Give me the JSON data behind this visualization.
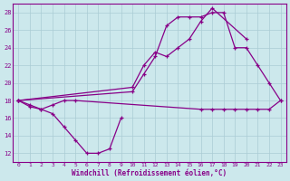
{
  "background_color": "#cce8ec",
  "grid_color": "#aaccd4",
  "line_color": "#880088",
  "xlabel": "Windchill (Refroidissement éolien,°C)",
  "xlim": [
    -0.5,
    23.5
  ],
  "ylim": [
    11,
    29
  ],
  "yticks": [
    12,
    14,
    16,
    18,
    20,
    22,
    24,
    26,
    28
  ],
  "xticks": [
    0,
    1,
    2,
    3,
    4,
    5,
    6,
    7,
    8,
    9,
    10,
    11,
    12,
    13,
    14,
    15,
    16,
    17,
    18,
    19,
    20,
    21,
    22,
    23
  ],
  "series": [
    {
      "x": [
        0,
        1,
        2,
        3,
        4,
        5,
        6,
        7,
        8,
        9
      ],
      "y": [
        18,
        17.5,
        17,
        16.5,
        15,
        13.5,
        12,
        12,
        12.5,
        16
      ]
    },
    {
      "x": [
        0,
        1,
        2,
        3,
        4,
        5,
        16,
        17,
        18,
        19,
        20,
        21,
        22,
        23
      ],
      "y": [
        18,
        17.3,
        17,
        17.5,
        18,
        18,
        17,
        17,
        17,
        17,
        17,
        17,
        17,
        18
      ]
    },
    {
      "x": [
        0,
        10,
        11,
        12,
        13,
        14,
        15,
        16,
        17,
        18,
        19,
        20,
        21,
        22,
        23
      ],
      "y": [
        18,
        19,
        21,
        23,
        26.5,
        27.5,
        27.5,
        27.5,
        28,
        28,
        24,
        24,
        22,
        20,
        18
      ]
    },
    {
      "x": [
        0,
        10,
        11,
        12,
        13,
        14,
        15,
        16,
        17,
        20
      ],
      "y": [
        18,
        19.5,
        22,
        23.5,
        23,
        24,
        25,
        27,
        28.5,
        25
      ]
    }
  ]
}
